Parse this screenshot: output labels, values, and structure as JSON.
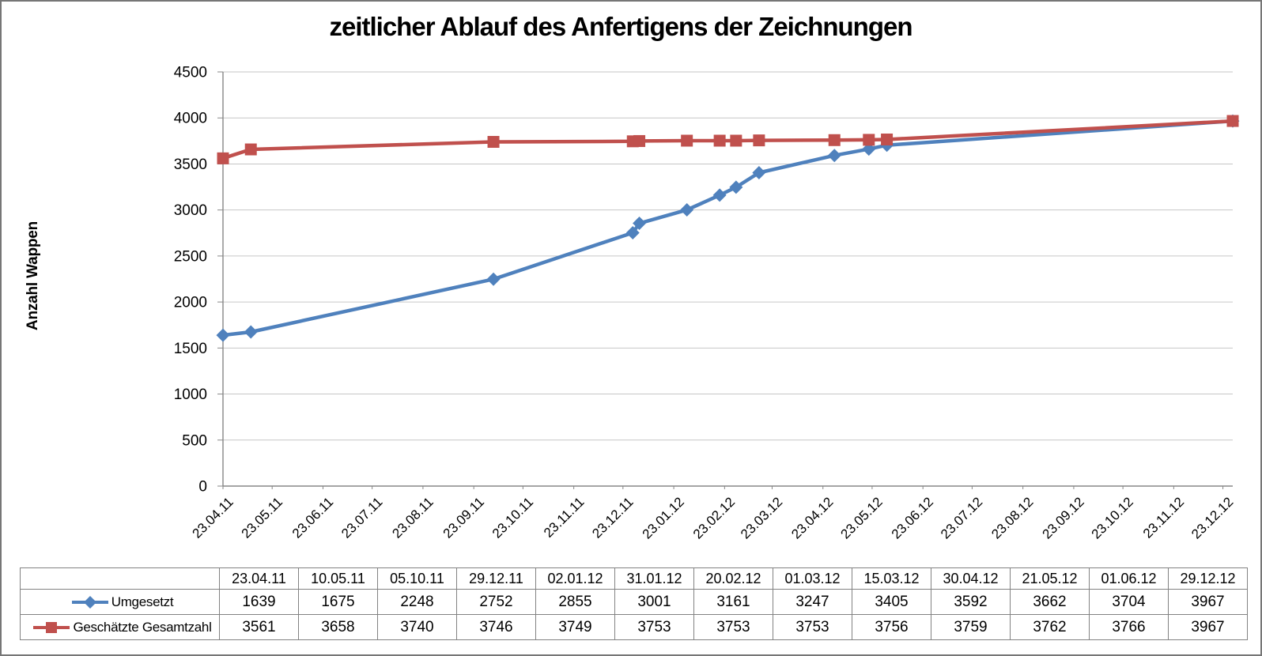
{
  "chart_data": {
    "type": "line",
    "title": "zeitlicher Ablauf des Anfertigens der Zeichnungen",
    "ylabel": "Anzahl Wappen",
    "ylim": [
      0,
      4500
    ],
    "ytick_step": 500,
    "grid": true,
    "legend_position": "table-left",
    "x_axis": {
      "tick_labels": [
        "23.04.11",
        "23.05.11",
        "23.06.11",
        "23.07.11",
        "23.08.11",
        "23.09.11",
        "23.10.11",
        "23.11.11",
        "23.12.11",
        "23.01.12",
        "23.02.12",
        "23.03.12",
        "23.04.12",
        "23.05.12",
        "23.06.12",
        "23.07.12",
        "23.08.12",
        "23.09.12",
        "23.10.12",
        "23.11.12",
        "23.12.12"
      ],
      "tick_day_offsets": [
        0,
        30,
        61,
        91,
        122,
        153,
        183,
        214,
        244,
        275,
        306,
        335,
        366,
        396,
        427,
        457,
        488,
        519,
        549,
        580,
        610
      ],
      "total_days": 616
    },
    "series": [
      {
        "name": "Umgesetzt",
        "color": "#4F81BD",
        "marker": "diamond",
        "x": [
          "23.04.11",
          "10.05.11",
          "05.10.11",
          "29.12.11",
          "02.01.12",
          "31.01.12",
          "20.02.12",
          "01.03.12",
          "15.03.12",
          "30.04.12",
          "21.05.12",
          "01.06.12",
          "29.12.12"
        ],
        "x_day_offsets": [
          0,
          17,
          165,
          250,
          254,
          283,
          303,
          313,
          327,
          373,
          394,
          405,
          616
        ],
        "values": [
          1639,
          1675,
          2248,
          2752,
          2855,
          3001,
          3161,
          3247,
          3405,
          3592,
          3662,
          3704,
          3967
        ]
      },
      {
        "name": "Geschätzte Gesamtzahl",
        "color": "#C0504D",
        "marker": "square",
        "x": [
          "23.04.11",
          "10.05.11",
          "05.10.11",
          "29.12.11",
          "02.01.12",
          "31.01.12",
          "20.02.12",
          "01.03.12",
          "15.03.12",
          "30.04.12",
          "21.05.12",
          "01.06.12",
          "29.12.12"
        ],
        "x_day_offsets": [
          0,
          17,
          165,
          250,
          254,
          283,
          303,
          313,
          327,
          373,
          394,
          405,
          616
        ],
        "values": [
          3561,
          3658,
          3740,
          3746,
          3749,
          3753,
          3753,
          3753,
          3756,
          3759,
          3762,
          3766,
          3967
        ]
      }
    ]
  },
  "table": {
    "columns": [
      "23.04.11",
      "10.05.11",
      "05.10.11",
      "29.12.11",
      "02.01.12",
      "31.01.12",
      "20.02.12",
      "01.03.12",
      "15.03.12",
      "30.04.12",
      "21.05.12",
      "01.06.12",
      "29.12.12"
    ],
    "rows": [
      {
        "label": "Umgesetzt",
        "marker": "diamond",
        "color": "#4F81BD",
        "values": [
          1639,
          1675,
          2248,
          2752,
          2855,
          3001,
          3161,
          3247,
          3405,
          3592,
          3662,
          3704,
          3967
        ]
      },
      {
        "label": "Geschätzte Gesamtzahl",
        "marker": "square",
        "color": "#C0504D",
        "values": [
          3561,
          3658,
          3740,
          3746,
          3749,
          3753,
          3753,
          3753,
          3756,
          3759,
          3762,
          3766,
          3967
        ]
      }
    ]
  },
  "colors": {
    "series_blue": "#4F81BD",
    "series_red": "#C0504D",
    "gridline": "#C6C6C6",
    "axis": "#878787",
    "table_border": "#828282",
    "frame": "#767676",
    "background": "#FFFFFF",
    "text": "#000000"
  }
}
